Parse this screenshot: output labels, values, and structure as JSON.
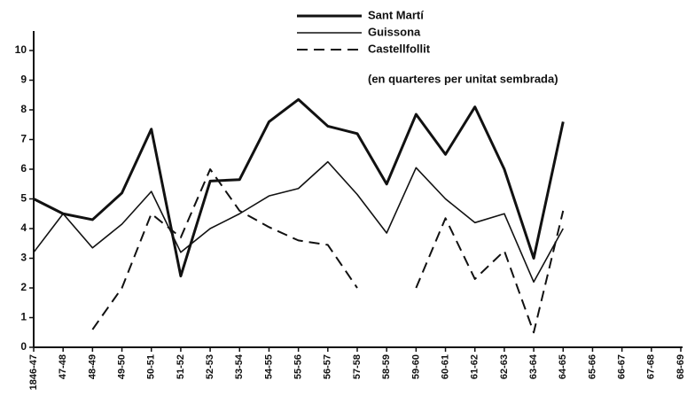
{
  "chart_data": {
    "type": "line",
    "annotation": "(en quarteres per unitat sembrada)",
    "categories": [
      "1846-47",
      "47-48",
      "48-49",
      "49-50",
      "50-51",
      "51-52",
      "52-53",
      "53-54",
      "54-55",
      "55-56",
      "56-57",
      "57-58",
      "58-59",
      "59-60",
      "60-61",
      "61-62",
      "62-63",
      "63-64",
      "64-65",
      "65-66",
      "66-67",
      "67-68",
      "68-69"
    ],
    "series": [
      {
        "name": "Sant Martí",
        "color": "#111111",
        "line_width": 3,
        "dashed": false,
        "values": [
          5.0,
          4.5,
          4.3,
          5.2,
          7.35,
          2.4,
          5.6,
          5.65,
          7.6,
          8.35,
          7.45,
          7.2,
          5.5,
          7.85,
          6.5,
          8.1,
          6.0,
          3.0,
          7.6,
          null,
          null,
          null,
          null
        ]
      },
      {
        "name": "Guissona",
        "color": "#111111",
        "line_width": 1.6,
        "dashed": false,
        "values": [
          3.2,
          4.5,
          3.35,
          4.15,
          5.25,
          3.2,
          4.0,
          4.5,
          5.1,
          5.35,
          6.25,
          5.15,
          3.85,
          6.05,
          5.0,
          4.2,
          4.5,
          2.2,
          4.0,
          null,
          null,
          null,
          null
        ]
      },
      {
        "name": "Castellfollit",
        "color": "#111111",
        "line_width": 2,
        "dashed": true,
        "values": [
          null,
          null,
          0.6,
          2.0,
          4.5,
          3.7,
          6.0,
          4.6,
          4.05,
          3.6,
          3.45,
          2.0,
          null,
          2.0,
          4.35,
          2.3,
          3.25,
          0.5,
          4.6,
          null,
          null,
          null,
          null
        ]
      }
    ],
    "ylim": [
      0,
      10
    ],
    "yticks": [
      0,
      1,
      2,
      3,
      4,
      5,
      6,
      7,
      8,
      9,
      10
    ],
    "grid": false
  }
}
